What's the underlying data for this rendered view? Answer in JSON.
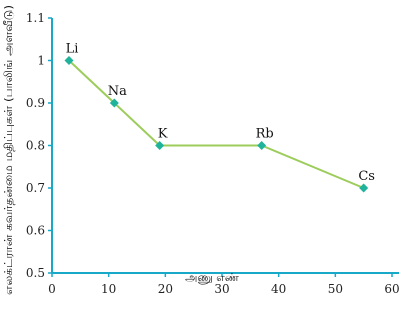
{
  "chart_data": {
    "type": "line",
    "title": "",
    "xlabel": "அணு எண்",
    "ylabel": "எலக்ட்ரான் கவர்தன்மை மதிப்புகள் (பாலிங் அளவீடு)",
    "x": [
      3,
      11,
      19,
      37,
      55
    ],
    "y": [
      1.0,
      0.9,
      0.8,
      0.8,
      0.7
    ],
    "point_labels": [
      "Li",
      "Na",
      "K",
      "Rb",
      "Cs"
    ],
    "xlim": [
      0,
      60
    ],
    "ylim": [
      0.5,
      1.1
    ],
    "xticks": [
      "0",
      "10",
      "20",
      "30",
      "40",
      "50",
      "60"
    ],
    "yticks": [
      "0.5",
      "0.6",
      "0.7",
      "0.8",
      "0.9",
      "1",
      "1.1"
    ],
    "grid": false,
    "colors": {
      "axis": "#19a9c8",
      "line": "#9ccc5a",
      "marker": "#1fb39b"
    }
  }
}
